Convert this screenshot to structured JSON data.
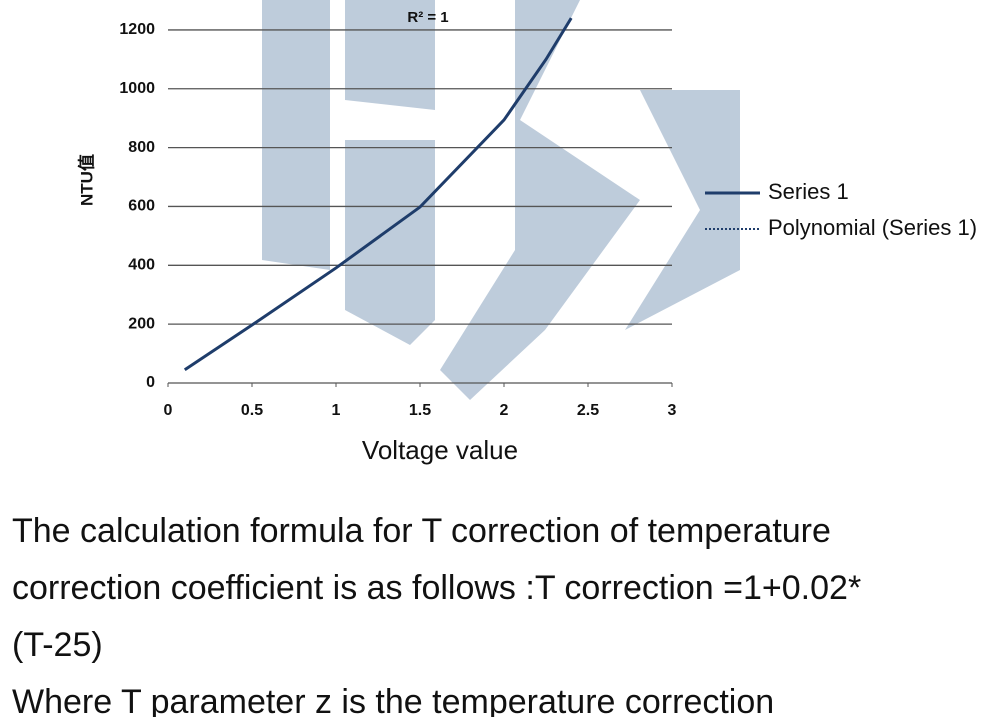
{
  "chart_data": {
    "type": "line",
    "annotation": "R² = 1",
    "x_label": "Voltage value",
    "y_label": "NTU值",
    "x": [
      0.1,
      0.5,
      1,
      1.5,
      2,
      2.25,
      2.4
    ],
    "series": [
      {
        "name": "Series 1",
        "color": "#1f3d6b",
        "style": "solid",
        "values": [
          45,
          197,
          391,
          598,
          894,
          1100,
          1240
        ]
      },
      {
        "name": "Polynomial (Series 1)",
        "color": "#1f3d6b",
        "style": "dotted",
        "values": [
          45,
          197,
          391,
          598,
          894,
          1100,
          1240
        ]
      }
    ],
    "xlim": [
      0,
      3
    ],
    "xticks": [
      0,
      0.5,
      1,
      1.5,
      2,
      2.5,
      3
    ],
    "ylim": [
      0,
      1300
    ],
    "yticks": [
      0,
      200,
      400,
      600,
      800,
      1000,
      1200
    ],
    "grid": true,
    "legend": "right"
  },
  "text": {
    "lines": [
      "The calculation formula for T correction of temperature",
      "correction coefficient is as follows :T correction =1+0.02*",
      "(T-25)",
      "Where T parameter z is the temperature correction"
    ]
  }
}
